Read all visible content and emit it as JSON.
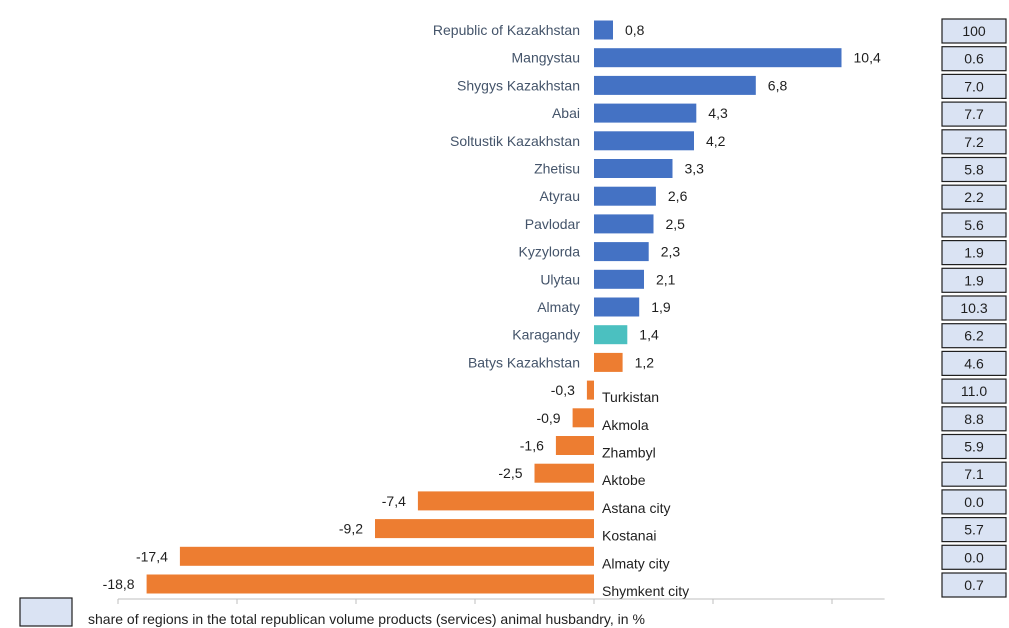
{
  "chart_data": {
    "type": "bar",
    "orientation": "horizontal",
    "categories": [
      "Republic of Kazakhstan",
      "Mangystau",
      "Shygys Kazakhstan",
      "Abai",
      "Soltustik Kazakhstan",
      "Zhetisu",
      "Atyrau",
      "Pavlodar",
      "Kyzylorda",
      "Ulytau",
      "Almaty",
      "Karagandy",
      "Batys Kazakhstan",
      "Turkistan",
      "Akmola",
      "Zhambyl",
      "Aktobe",
      "Astana city",
      "Kostanai",
      "Almaty city",
      "Shymkent city"
    ],
    "values": [
      0.8,
      10.4,
      6.8,
      4.3,
      4.2,
      3.3,
      2.6,
      2.5,
      2.3,
      2.1,
      1.9,
      1.4,
      1.2,
      -0.3,
      -0.9,
      -1.6,
      -2.5,
      -7.4,
      -9.2,
      -17.4,
      -18.8
    ],
    "value_labels": [
      "0,8",
      "10,4",
      "6,8",
      "4,3",
      "4,2",
      "3,3",
      "2,6",
      "2,5",
      "2,3",
      "2,1",
      "1,9",
      "1,4",
      "1,2",
      "-0,3",
      "-0,9",
      "-1,6",
      "-2,5",
      "-7,4",
      "-9,2",
      "-17,4",
      "-18,8"
    ],
    "share_values": [
      "100",
      "0.6",
      "7.0",
      "7.7",
      "7.2",
      "5.8",
      "2.2",
      "5.6",
      "1.9",
      "1.9",
      "10.3",
      "6.2",
      "4.6",
      "11.0",
      "8.8",
      "5.9",
      "7.1",
      "0.0",
      "5.7",
      "0.0",
      "0.7"
    ],
    "bar_colors": [
      "#4472c4",
      "#4472c4",
      "#4472c4",
      "#4472c4",
      "#4472c4",
      "#4472c4",
      "#4472c4",
      "#4472c4",
      "#4472c4",
      "#4472c4",
      "#4472c4",
      "#4bc0c0",
      "#ed7d31",
      "#ed7d31",
      "#ed7d31",
      "#ed7d31",
      "#ed7d31",
      "#ed7d31",
      "#ed7d31",
      "#ed7d31",
      "#ed7d31"
    ],
    "xlim": [
      -20,
      12
    ],
    "grid": false,
    "legend": {
      "label": "share of regions in the total republican volume products (services) animal husbandry, in %",
      "placement": "bottom-left"
    }
  }
}
